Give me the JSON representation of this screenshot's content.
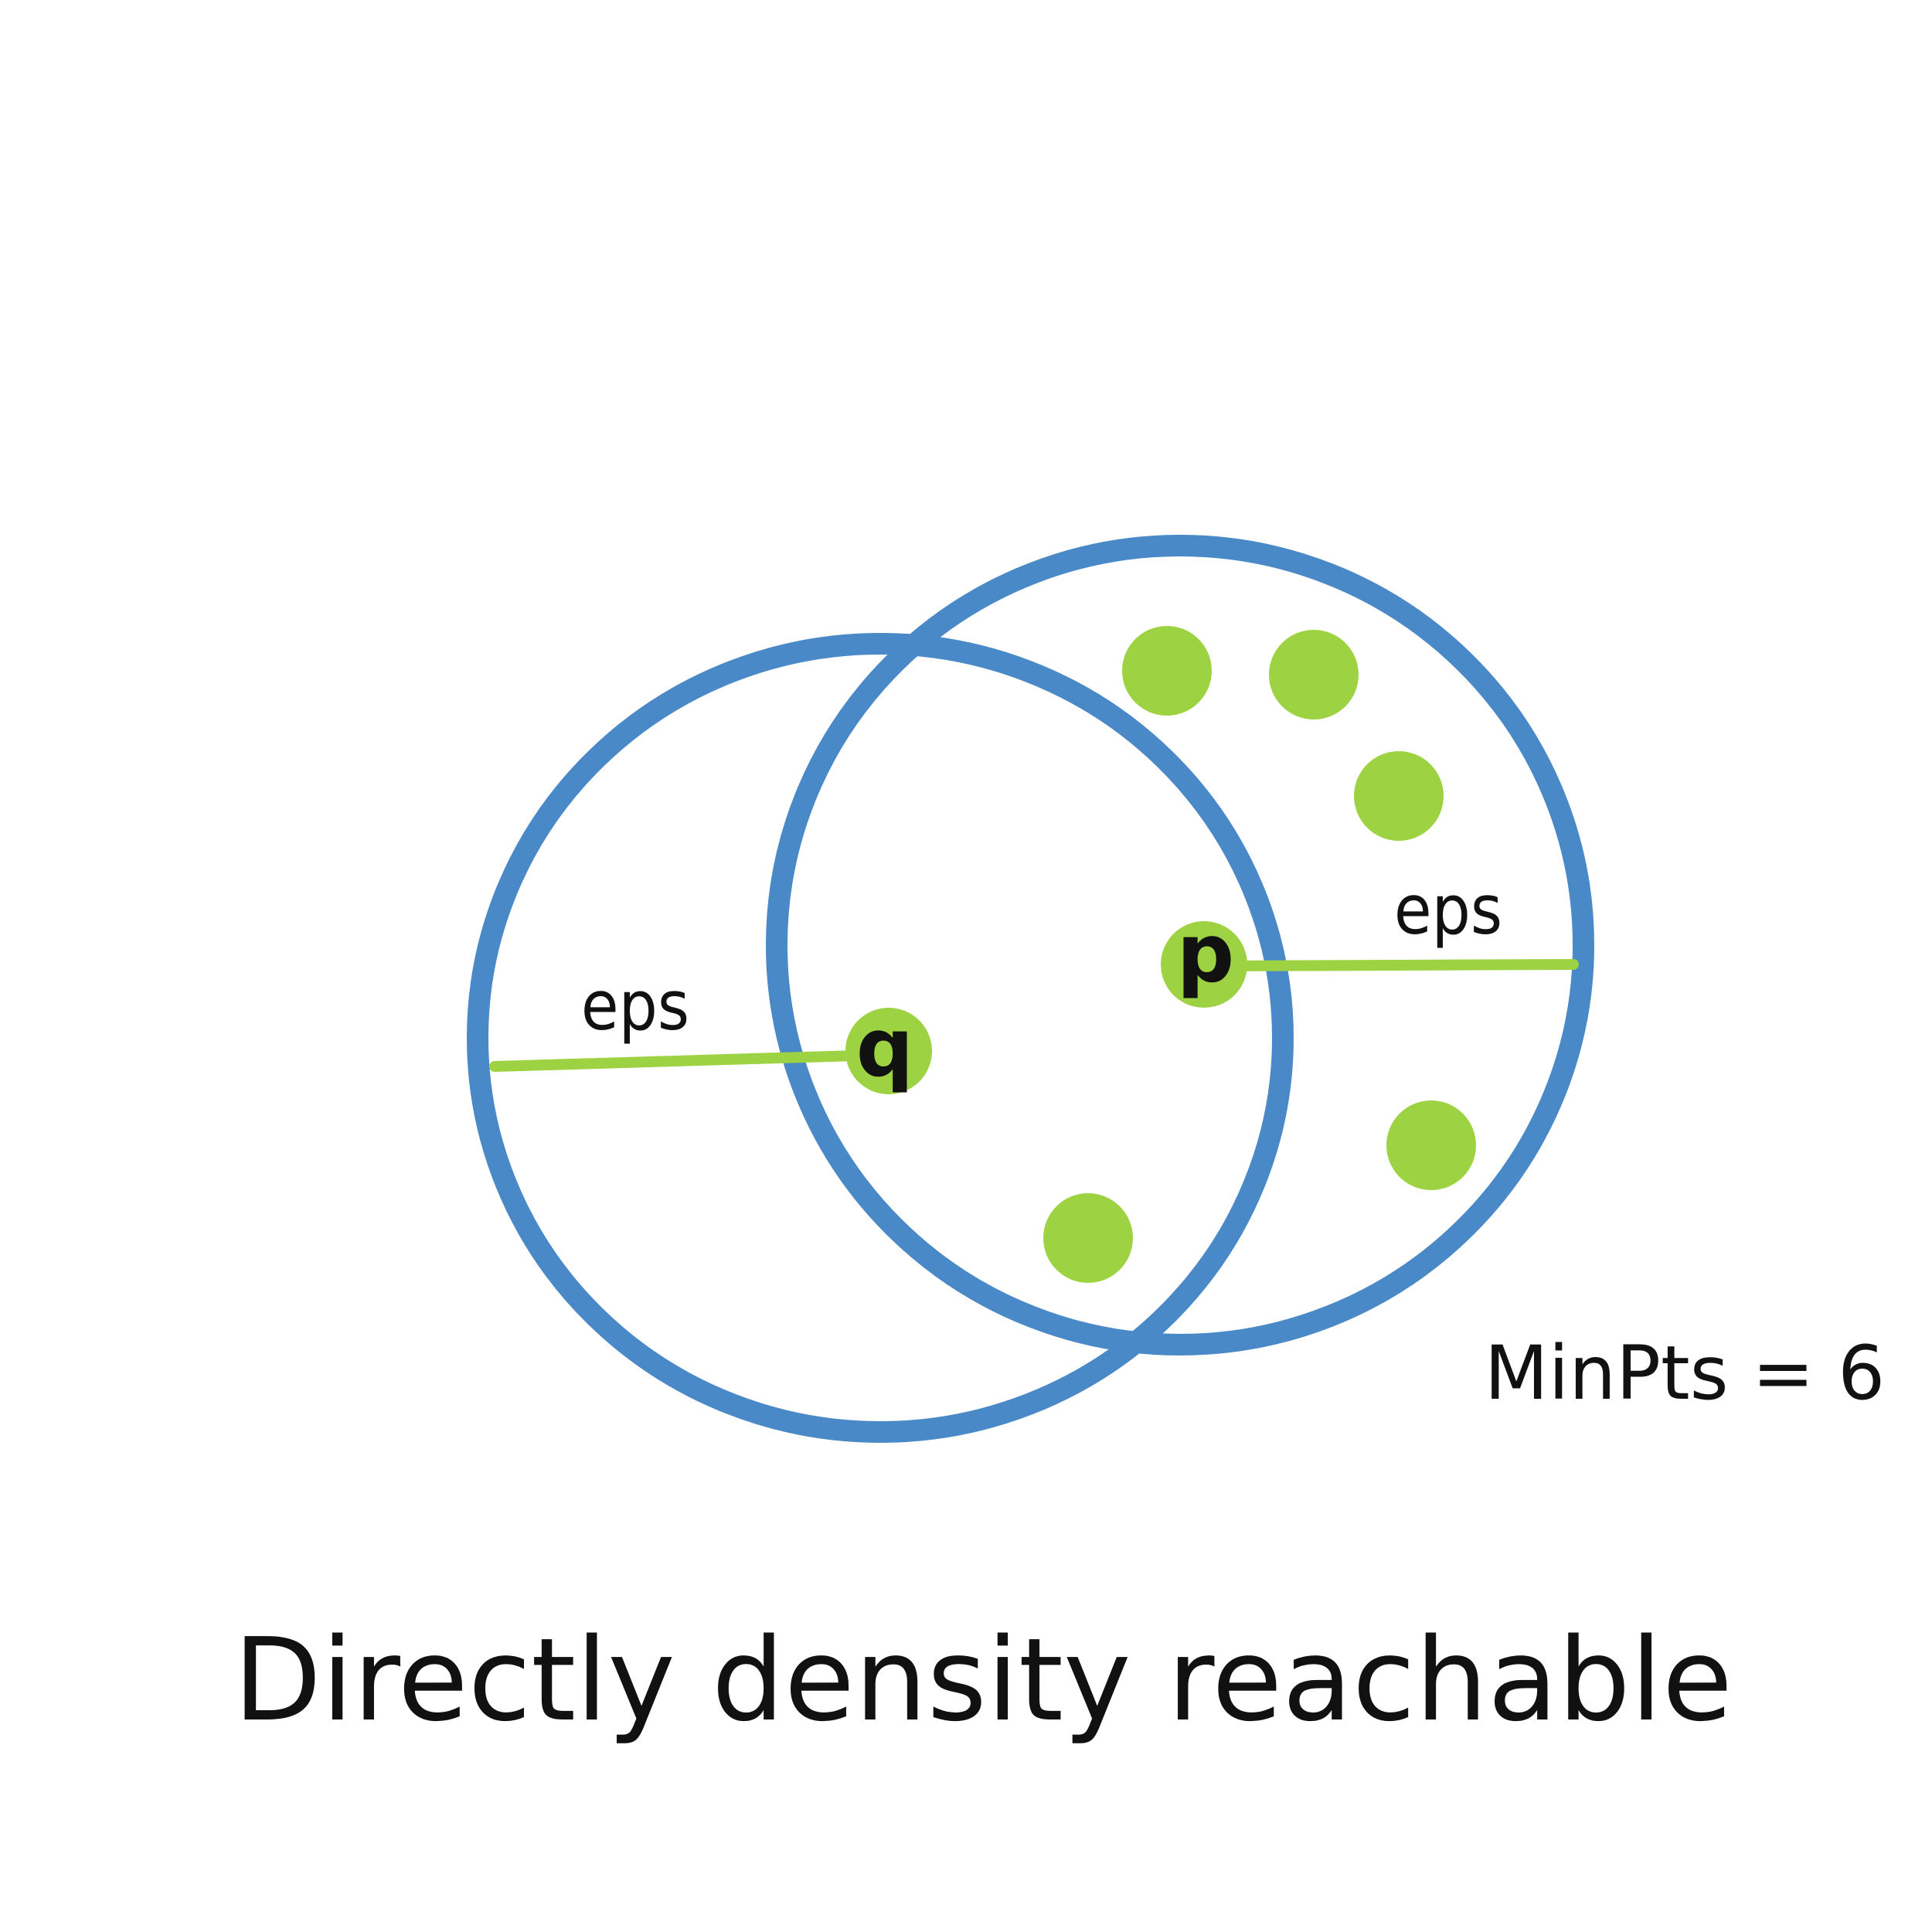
{
  "diagram": {
    "caption": "Directly density reachable",
    "minpts_label": "MinPts = 6",
    "eps_label_left": "eps",
    "eps_label_right": "eps",
    "point_q_label": "q",
    "point_p_label": "p"
  },
  "colors": {
    "circle_stroke": "#4A89C8",
    "point_fill": "#9DD342",
    "text": "#111111",
    "background": "#FFFFFF"
  }
}
